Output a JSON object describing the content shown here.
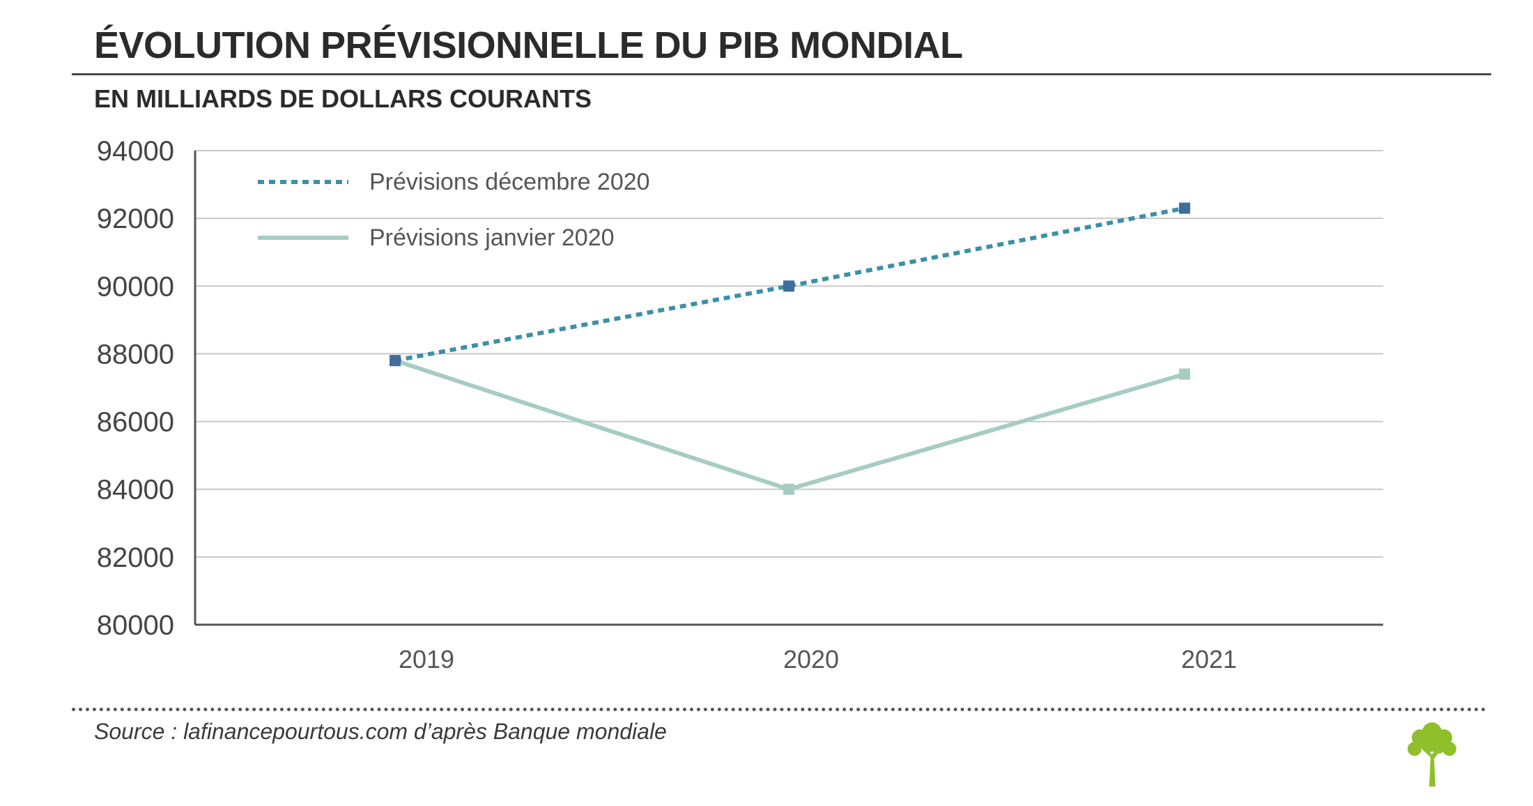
{
  "header": {
    "title": "ÉVOLUTION PRÉVISIONNELLE DU PIB MONDIAL",
    "subtitle": "EN MILLIARDS DE DOLLARS COURANTS"
  },
  "footer": {
    "source": "Source : lafinancepourtous.com d’après Banque mondiale"
  },
  "colors": {
    "series_december": "#3d8fa8",
    "marker_december": "#3f6d9c",
    "series_january": "#a6ccc3",
    "grid": "#c8c8c8",
    "axis": "#555555",
    "logo_green": "#8fbf2a"
  },
  "logo": {
    "icon": "tree-icon"
  },
  "chart_data": {
    "type": "line",
    "categories": [
      "2019",
      "2020",
      "2021"
    ],
    "ylim": [
      80000,
      94000
    ],
    "y_ticks": [
      "80000",
      "82000",
      "84000",
      "86000",
      "88000",
      "90000",
      "92000",
      "94000"
    ],
    "grid": true,
    "legend_position": "top-left",
    "series": [
      {
        "name": "Prévisions décembre 2020",
        "values": [
          87800,
          90000,
          92300
        ],
        "style": "dotted"
      },
      {
        "name": "Prévisions janvier 2020",
        "values": [
          87800,
          84000,
          87400
        ],
        "style": "solid"
      }
    ]
  }
}
